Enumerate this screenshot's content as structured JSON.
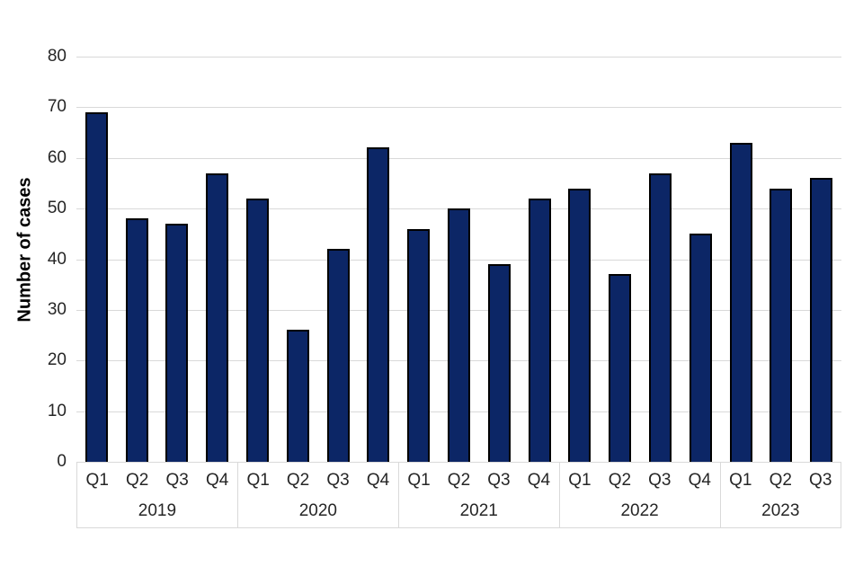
{
  "chart_data": {
    "type": "bar",
    "title": "",
    "ylabel": "Number of cases",
    "xlabel": "",
    "ylim": [
      0,
      80
    ],
    "yticks": [
      0,
      10,
      20,
      30,
      40,
      50,
      60,
      70,
      80
    ],
    "grid": "horizontal",
    "legend": "none",
    "colors": {
      "bar_fill": "#0c2666",
      "bar_border": "#000000",
      "gridline": "#d9d9d9",
      "axis_box_border": "#d9d9d9",
      "text": "#262626"
    },
    "groups": [
      {
        "year": "2019",
        "categories": [
          "Q1",
          "Q2",
          "Q3",
          "Q4"
        ],
        "values": [
          69,
          48,
          47,
          57
        ]
      },
      {
        "year": "2020",
        "categories": [
          "Q1",
          "Q2",
          "Q3",
          "Q4"
        ],
        "values": [
          52,
          26,
          42,
          62
        ]
      },
      {
        "year": "2021",
        "categories": [
          "Q1",
          "Q2",
          "Q3",
          "Q4"
        ],
        "values": [
          46,
          50,
          39,
          52
        ]
      },
      {
        "year": "2022",
        "categories": [
          "Q1",
          "Q2",
          "Q3",
          "Q4"
        ],
        "values": [
          54,
          37,
          57,
          45
        ]
      },
      {
        "year": "2023",
        "categories": [
          "Q1",
          "Q2",
          "Q3"
        ],
        "values": [
          63,
          54,
          56
        ]
      }
    ]
  }
}
